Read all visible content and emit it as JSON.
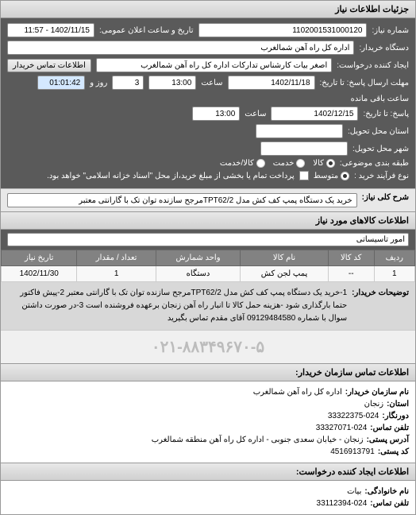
{
  "panel_title": "جزئیات اطلاعات نیاز",
  "header": {
    "req_no_label": "شماره نیاز:",
    "req_no": "1102001531000120",
    "date_label": "تاریخ و ساعت اعلان عمومی:",
    "date_value": "1402/11/15 - 11:57",
    "buyer_label": "دستگاه خریدار:",
    "buyer_value": "اداره کل راه آهن شمالغرب",
    "creator_label": "ایجاد کننده درخواست:",
    "creator_value": "اصغر بیات کارشناس تدارکات اداره کل راه آهن شمالغرب",
    "contact_btn": "اطلاعات تماس خریدار",
    "deadline_label": "مهلت ارسال پاسخ: تا تاریخ:",
    "deadline_date": "1402/11/18",
    "time_label": "ساعت",
    "deadline_time": "13:00",
    "days_remaining": "3",
    "days_label": "روز و",
    "timer": "01:01:42",
    "timer_label": "ساعت باقی مانده",
    "response_label": "پاسخ: تا تاریخ:",
    "response_date": "1402/12/15",
    "response_time": "13:00",
    "issue_loc_label": "استان محل تحویل:",
    "delivery_loc_label": "شهر محل تحویل:",
    "category_label": "طبقه بندی موضوعی:",
    "radio_all": "کالا",
    "radio_service": "خدمت",
    "radio_goods": "کالا/خدمت",
    "process_label": "نوع فرآیند خرید :",
    "radio_mid": "متوسط",
    "checkbox_label": "پرداخت تمام یا بخشی از مبلغ خرید،از محل \"اسناد خزانه اسلامی\" خواهد بود."
  },
  "summary": {
    "label": "شرح کلی نیاز:",
    "text": "خرید یک دستگاه پمپ کف کش مدل TPT62/2مرجح سازنده توان تک با گارانتی معتبر"
  },
  "goods_header": "اطلاعات کالاهای مورد نیاز",
  "name_label": "امور تاسیساتی",
  "table": {
    "columns": [
      "ردیف",
      "کد کالا",
      "نام کالا",
      "واحد شمارش",
      "تعداد / مقدار",
      "تاریخ نیاز"
    ],
    "rows": [
      [
        "1",
        "--",
        "پمپ لجن کش",
        "دستگاه",
        "1",
        "1402/11/30"
      ]
    ]
  },
  "description": {
    "label": "توضیحات خریدار:",
    "text": "1-خرید یک دستگاه پمپ کف کش مدل TPT62/2مرجح سازنده توان تک با گارانتی معتبر 2-پیش فاکتور حتما بارگذاری شود -هزینه حمل کالا تا انبار راه آهن زنجان برعهده فروشنده است 3-در صورت داشتن سوال با شماره 09129484580 آقای مقدم تماس بگیرید"
  },
  "watermark": "۰۲۱-۸۸۳۴۹۶۷۰-۵",
  "contact": {
    "header": "اطلاعات تماس سازمان خریدار:",
    "org_label": "نام سازمان خریدار:",
    "org_value": "اداره کل راه آهن شمالغرب",
    "province_label": "استان:",
    "province_value": "زنجان",
    "fax_label": "دورنگار:",
    "fax_value": "33322375-024",
    "phone_label": "تلفن تماس:",
    "phone_value": "33327071-024",
    "address_label": "آدرس پستی:",
    "address_value": "زنجان - خیابان سعدی جنوبی - اداره کل راه آهن منطقه شمالغرب",
    "postal_label": "کد پستی:",
    "postal_value": "4516913791",
    "creator_header": "اطلاعات ایجاد کننده درخواست:",
    "family_label": "نام خانوادگی:",
    "family_value": "بیات",
    "creator_phone_label": "تلفن تماس:",
    "creator_phone_value": "33112394-024"
  }
}
